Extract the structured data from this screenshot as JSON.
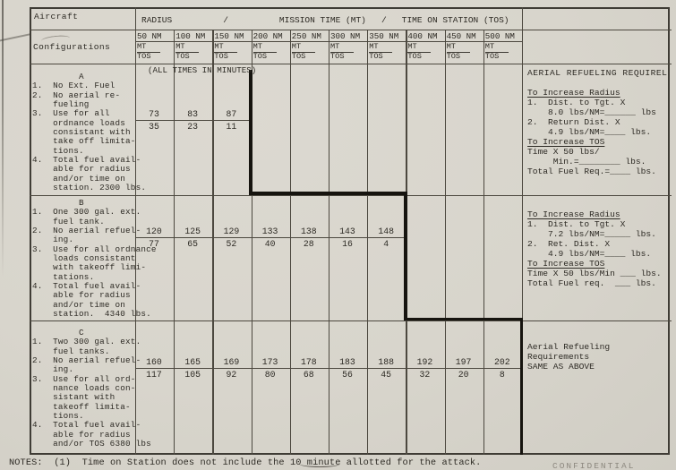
{
  "colors": {
    "paper": "#d8d5cc",
    "ink": "#2e2b25",
    "line": "#4c483f",
    "thick": "#16140f"
  },
  "header": {
    "aircraft": "Aircraft",
    "configurations": "Configurations",
    "span_title": "RADIUS          /          MISSION TIME (MT)   /   TIME ON STATION (TOS)",
    "all_times": "(ALL TIMES IN MINUTES)",
    "mt": "MT",
    "tos": "TOS",
    "columns": [
      "50 NM",
      "100 NM",
      "150 NM",
      "200 NM",
      "250 NM",
      "300 NM",
      "350 NM",
      "400 NM",
      "450 NM",
      "500 NM"
    ]
  },
  "sections": [
    {
      "id": "A",
      "left_text": "         A\n1.  No Ext. Fuel\n2.  No aerial re-\n    fueling\n3.  Use for all\n    ordnance loads\n    consistant with\n    take off limita-\n    tions.\n4.  Total fuel avail-\n    able for radius\n    and/or time on\n    station. 2300 lbs.",
      "values": [
        [
          "73",
          "35"
        ],
        [
          "83",
          "23"
        ],
        [
          "87",
          "11"
        ]
      ],
      "panel": [
        {
          "text": "AERIAL REFUELING REQUIREL",
          "title": true
        },
        {
          "text": ""
        },
        {
          "text": "To Increase Radius",
          "underline": true
        },
        {
          "text": "1.  Dist. to Tgt. X"
        },
        {
          "text": "    8.0 lbs/NM=______ lbs"
        },
        {
          "text": "2.  Return Dist. X"
        },
        {
          "text": "    4.9 lbs/NM=____ lbs."
        },
        {
          "text": "To Increase TOS",
          "underline": true
        },
        {
          "text": "Time X 50 lbs/"
        },
        {
          "text": "     Min.=________ lbs."
        },
        {
          "text": "Total Fuel Req.=____ lbs."
        }
      ]
    },
    {
      "id": "B",
      "left_text": "         B\n1.  One 300 gal. ext.\n    fuel tank.\n2.  No aerial refuel-\n    ing.\n3.  Use for all ordnance\n    loads consistant\n    with takeoff limi-\n    tations.\n4.  Total fuel avail-\n    able for radius\n    and/or time on\n    station.  4340 lbs.",
      "values": [
        [
          "120",
          "77"
        ],
        [
          "125",
          "65"
        ],
        [
          "129",
          "52"
        ],
        [
          "133",
          "40"
        ],
        [
          "138",
          "28"
        ],
        [
          "143",
          "16"
        ],
        [
          "148",
          "4"
        ]
      ],
      "panel": [
        {
          "text": "To Increase Radius",
          "underline": true
        },
        {
          "text": "1.  Dist. to Tgt. X"
        },
        {
          "text": "    7.2 lbs/NM=_____ lbs."
        },
        {
          "text": "2.  Ret. Dist. X"
        },
        {
          "text": "    4.9 lbs/NM=____ lbs."
        },
        {
          "text": "To Increase TOS",
          "underline": true
        },
        {
          "text": "Time X 50 lbs/Min ___ lbs."
        },
        {
          "text": "Total Fuel req.  ___ lbs."
        }
      ]
    },
    {
      "id": "C",
      "left_text": "         C\n1.  Two 300 gal. ext.\n    fuel tanks.\n2.  No aerial refuel-\n    ing.\n3.  Use for all ord-\n    nance loads con-\n    sistant with\n    takeoff limita-\n    tions.\n4.  Total fuel avail-\n    able for radius\n    and/or TOS 6380 lbs",
      "values": [
        [
          "160",
          "117"
        ],
        [
          "165",
          "105"
        ],
        [
          "169",
          "92"
        ],
        [
          "173",
          "80"
        ],
        [
          "178",
          "68"
        ],
        [
          "183",
          "56"
        ],
        [
          "188",
          "45"
        ],
        [
          "192",
          "32"
        ],
        [
          "197",
          "20"
        ],
        [
          "202",
          "8"
        ]
      ],
      "panel": [
        {
          "text": "Aerial Refueling"
        },
        {
          "text": "Requirements"
        },
        {
          "text": "SAME AS ABOVE"
        }
      ]
    }
  ],
  "page": {
    "notes": "NOTES:  (1)  Time on Station does not include the 10 minute allotted for the attack.",
    "confidential": "CONFIDENTIAL"
  }
}
